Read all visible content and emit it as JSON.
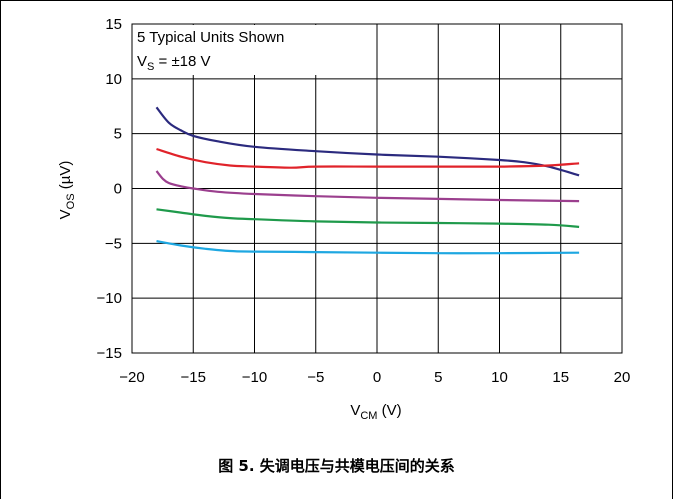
{
  "chart_data": {
    "type": "line",
    "xlabel": "V<sub>CM</sub> (V)",
    "xlabel_main": "V",
    "xlabel_sub": "CM",
    "xlabel_tail": " (V)",
    "ylabel_main": "V",
    "ylabel_sub": "OS",
    "ylabel_tail": " (µV)",
    "xlim": [
      -20,
      20
    ],
    "ylim": [
      -15,
      15
    ],
    "xticks": [
      -20,
      -15,
      -10,
      -5,
      0,
      5,
      10,
      15,
      20
    ],
    "yticks": [
      -15,
      -10,
      -5,
      0,
      5,
      10,
      15
    ],
    "xtick_labels": [
      "−20",
      "−15",
      "−10",
      "−5",
      "0",
      "5",
      "10",
      "15",
      "20"
    ],
    "ytick_labels": [
      "−15",
      "−10",
      "−5",
      "0",
      "5",
      "10",
      "15"
    ],
    "grid": true,
    "annotation_line1": "5 Typical Units Shown",
    "annotation_line2_main": "V",
    "annotation_line2_sub": "S",
    "annotation_line2_tail": " = ±18 V",
    "series": [
      {
        "color": "#2b2a7e",
        "x": [
          -18,
          -17,
          -16,
          -15,
          -13,
          -10,
          -5,
          0,
          5,
          10,
          12,
          14,
          16.5
        ],
        "y": [
          7.4,
          6.0,
          5.3,
          4.8,
          4.3,
          3.8,
          3.4,
          3.1,
          2.9,
          2.6,
          2.4,
          2.0,
          1.2
        ]
      },
      {
        "color": "#e0232a",
        "x": [
          -18,
          -16,
          -14,
          -12,
          -10,
          -7,
          -5,
          0,
          5,
          10,
          14,
          16.5
        ],
        "y": [
          3.6,
          2.9,
          2.4,
          2.1,
          2.0,
          1.9,
          2.0,
          2.0,
          2.0,
          2.0,
          2.1,
          2.3
        ]
      },
      {
        "color": "#9b3f8e",
        "x": [
          -18,
          -17.5,
          -17,
          -16,
          -15,
          -13,
          -10,
          -5,
          0,
          5,
          10,
          16.5
        ],
        "y": [
          1.6,
          0.9,
          0.5,
          0.2,
          0.0,
          -0.3,
          -0.5,
          -0.7,
          -0.85,
          -0.95,
          -1.05,
          -1.15
        ]
      },
      {
        "color": "#1f9a4b",
        "x": [
          -18,
          -16,
          -14,
          -12,
          -10,
          -5,
          0,
          5,
          10,
          14,
          16.5
        ],
        "y": [
          -1.9,
          -2.2,
          -2.5,
          -2.7,
          -2.8,
          -3.0,
          -3.1,
          -3.15,
          -3.2,
          -3.3,
          -3.5
        ]
      },
      {
        "color": "#1ea7e1",
        "x": [
          -18,
          -16,
          -14,
          -12,
          -10,
          -5,
          0,
          5,
          10,
          16.5
        ],
        "y": [
          -4.8,
          -5.2,
          -5.5,
          -5.7,
          -5.75,
          -5.8,
          -5.85,
          -5.9,
          -5.9,
          -5.85
        ]
      }
    ]
  },
  "caption": "图 5. 失调电压与共模电压间的关系"
}
